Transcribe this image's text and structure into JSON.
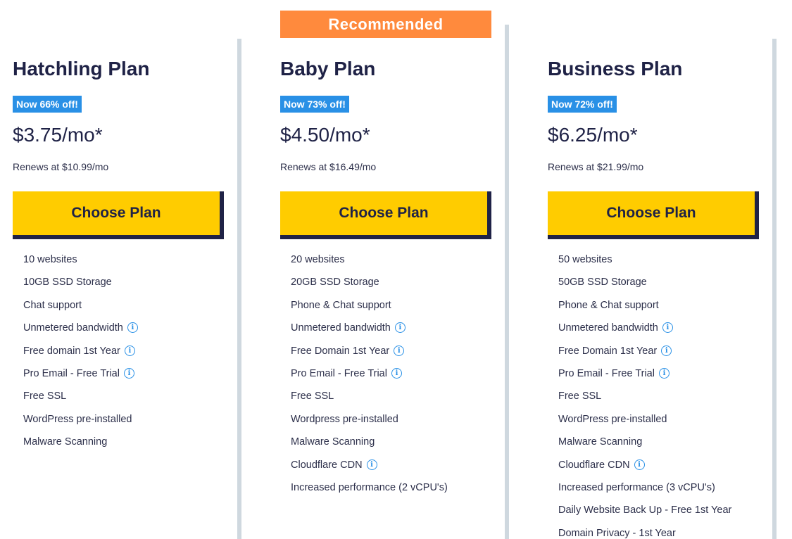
{
  "recommended_label": "Recommended",
  "plans": [
    {
      "title": "Hatchling Plan",
      "badge": "Now 66% off!",
      "price": "$3.75/mo*",
      "renews": "Renews at $10.99/mo",
      "cta": "Choose Plan",
      "features": [
        {
          "text": "10 websites",
          "info": false
        },
        {
          "text": "10GB SSD Storage",
          "info": false
        },
        {
          "text": "Chat support",
          "info": false
        },
        {
          "text": "Unmetered bandwidth",
          "info": true
        },
        {
          "text": "Free domain 1st Year",
          "info": true
        },
        {
          "text": "Pro Email - Free Trial",
          "info": true
        },
        {
          "text": "Free SSL",
          "info": false
        },
        {
          "text": "WordPress pre-installed",
          "info": false
        },
        {
          "text": "Malware Scanning",
          "info": false
        }
      ]
    },
    {
      "title": "Baby Plan",
      "badge": "Now 73% off!",
      "price": "$4.50/mo*",
      "renews": "Renews at $16.49/mo",
      "cta": "Choose Plan",
      "features": [
        {
          "text": "20 websites",
          "info": false
        },
        {
          "text": "20GB SSD Storage",
          "info": false
        },
        {
          "text": "Phone & Chat support",
          "info": false
        },
        {
          "text": "Unmetered bandwidth",
          "info": true
        },
        {
          "text": "Free Domain 1st Year",
          "info": true
        },
        {
          "text": "Pro Email - Free Trial",
          "info": true
        },
        {
          "text": "Free SSL",
          "info": false
        },
        {
          "text": "Wordpress pre-installed",
          "info": false
        },
        {
          "text": "Malware Scanning",
          "info": false
        },
        {
          "text": "Cloudflare CDN",
          "info": true
        },
        {
          "text": "Increased performance (2 vCPU's)",
          "info": false
        }
      ]
    },
    {
      "title": "Business Plan",
      "badge": "Now 72% off!",
      "price": "$6.25/mo*",
      "renews": "Renews at $21.99/mo",
      "cta": "Choose Plan",
      "features": [
        {
          "text": "50 websites",
          "info": false
        },
        {
          "text": "50GB SSD Storage",
          "info": false
        },
        {
          "text": "Phone & Chat support",
          "info": false
        },
        {
          "text": "Unmetered bandwidth",
          "info": true
        },
        {
          "text": "Free Domain 1st Year",
          "info": true
        },
        {
          "text": "Pro Email - Free Trial",
          "info": true
        },
        {
          "text": "Free SSL",
          "info": false
        },
        {
          "text": "WordPress pre-installed",
          "info": false
        },
        {
          "text": "Malware Scanning",
          "info": false
        },
        {
          "text": "Cloudflare CDN",
          "info": true
        },
        {
          "text": "Increased performance (3 vCPU's)",
          "info": false
        },
        {
          "text": "Daily Website Back Up - Free 1st Year",
          "info": false
        },
        {
          "text": "Domain Privacy - 1st Year",
          "info": false
        }
      ]
    }
  ],
  "icons": {
    "info": "info-icon",
    "info_glyph": "i"
  },
  "colors": {
    "cta": "#ffcc00",
    "badge": "#2990e6",
    "recommended": "#ff8a3d",
    "text": "#1f2246",
    "divider": "#cfd8df"
  }
}
